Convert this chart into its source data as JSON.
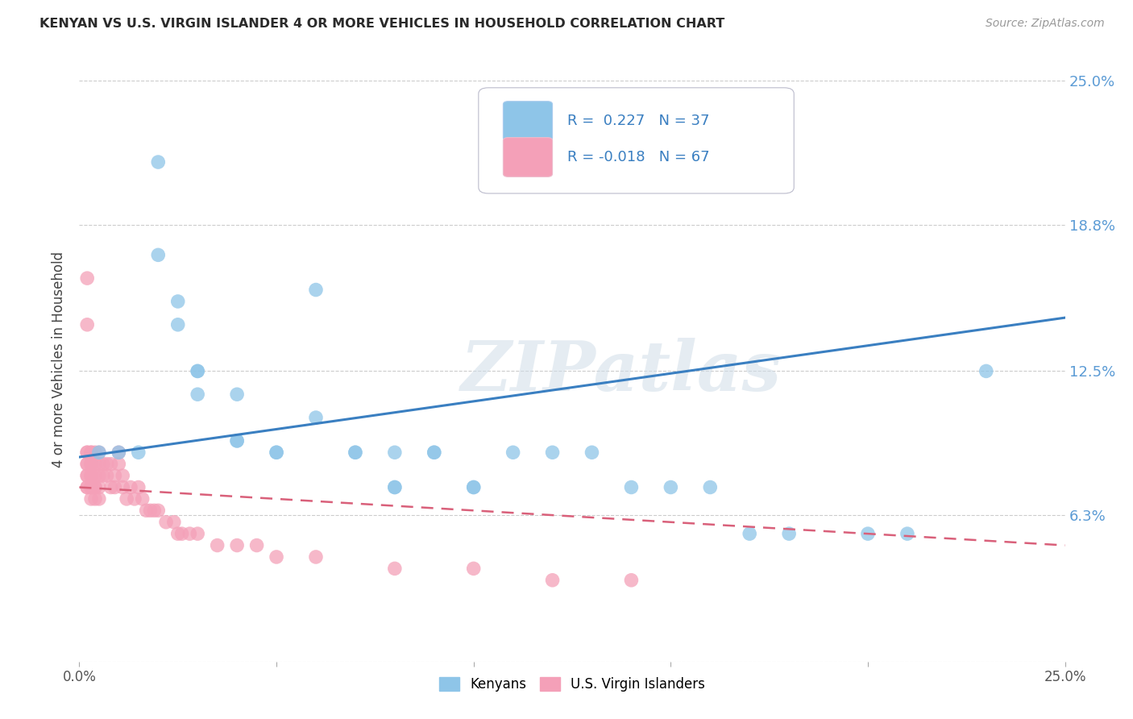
{
  "title": "KENYAN VS U.S. VIRGIN ISLANDER 4 OR MORE VEHICLES IN HOUSEHOLD CORRELATION CHART",
  "source": "Source: ZipAtlas.com",
  "ylabel": "4 or more Vehicles in Household",
  "xlim": [
    0.0,
    0.25
  ],
  "ylim": [
    0.0,
    0.26
  ],
  "yticks": [
    0.0,
    0.063,
    0.125,
    0.188,
    0.25
  ],
  "ytick_labels": [
    "",
    "6.3%",
    "12.5%",
    "18.8%",
    "25.0%"
  ],
  "xticks": [
    0.0,
    0.05,
    0.1,
    0.15,
    0.2,
    0.25
  ],
  "xtick_labels": [
    "0.0%",
    "",
    "",
    "",
    "",
    "25.0%"
  ],
  "kenyan_color": "#8ec5e8",
  "usvi_color": "#f4a0b8",
  "kenyan_line_color": "#3a7fc1",
  "usvi_line_color": "#d9607a",
  "legend_kenyan_R": "R =  0.227",
  "legend_kenyan_N": "N = 37",
  "legend_usvi_R": "R = -0.018",
  "legend_usvi_N": "N = 67",
  "watermark": "ZIPatlas",
  "background_color": "#ffffff",
  "kenyan_x": [
    0.005,
    0.01,
    0.015,
    0.02,
    0.02,
    0.025,
    0.025,
    0.03,
    0.03,
    0.03,
    0.04,
    0.04,
    0.04,
    0.05,
    0.05,
    0.06,
    0.06,
    0.07,
    0.07,
    0.08,
    0.08,
    0.08,
    0.09,
    0.09,
    0.1,
    0.1,
    0.11,
    0.12,
    0.13,
    0.14,
    0.15,
    0.16,
    0.17,
    0.18,
    0.2,
    0.21,
    0.23
  ],
  "kenyan_y": [
    0.09,
    0.09,
    0.09,
    0.215,
    0.175,
    0.155,
    0.145,
    0.125,
    0.125,
    0.115,
    0.115,
    0.095,
    0.095,
    0.09,
    0.09,
    0.16,
    0.105,
    0.09,
    0.09,
    0.09,
    0.075,
    0.075,
    0.09,
    0.09,
    0.075,
    0.075,
    0.09,
    0.09,
    0.09,
    0.075,
    0.075,
    0.075,
    0.055,
    0.055,
    0.055,
    0.055,
    0.125
  ],
  "usvi_x": [
    0.002,
    0.002,
    0.002,
    0.002,
    0.002,
    0.002,
    0.002,
    0.002,
    0.002,
    0.002,
    0.003,
    0.003,
    0.003,
    0.003,
    0.003,
    0.003,
    0.003,
    0.003,
    0.003,
    0.003,
    0.004,
    0.004,
    0.004,
    0.004,
    0.004,
    0.004,
    0.005,
    0.005,
    0.005,
    0.005,
    0.005,
    0.006,
    0.006,
    0.007,
    0.007,
    0.008,
    0.008,
    0.009,
    0.009,
    0.01,
    0.01,
    0.011,
    0.011,
    0.012,
    0.013,
    0.014,
    0.015,
    0.016,
    0.017,
    0.018,
    0.019,
    0.02,
    0.022,
    0.024,
    0.025,
    0.026,
    0.028,
    0.03,
    0.035,
    0.04,
    0.045,
    0.05,
    0.06,
    0.08,
    0.1,
    0.12,
    0.14
  ],
  "usvi_y": [
    0.165,
    0.145,
    0.09,
    0.09,
    0.085,
    0.085,
    0.08,
    0.08,
    0.075,
    0.075,
    0.09,
    0.09,
    0.085,
    0.085,
    0.08,
    0.08,
    0.075,
    0.075,
    0.075,
    0.07,
    0.09,
    0.085,
    0.08,
    0.075,
    0.075,
    0.07,
    0.09,
    0.085,
    0.08,
    0.075,
    0.07,
    0.085,
    0.08,
    0.085,
    0.08,
    0.085,
    0.075,
    0.08,
    0.075,
    0.09,
    0.085,
    0.08,
    0.075,
    0.07,
    0.075,
    0.07,
    0.075,
    0.07,
    0.065,
    0.065,
    0.065,
    0.065,
    0.06,
    0.06,
    0.055,
    0.055,
    0.055,
    0.055,
    0.05,
    0.05,
    0.05,
    0.045,
    0.045,
    0.04,
    0.04,
    0.035,
    0.035
  ],
  "kenyan_trend_x": [
    0.0,
    0.25
  ],
  "kenyan_trend_y_start": 0.088,
  "kenyan_trend_y_end": 0.148,
  "usvi_trend_x": [
    0.0,
    0.25
  ],
  "usvi_trend_y_start": 0.075,
  "usvi_trend_y_end": 0.05
}
